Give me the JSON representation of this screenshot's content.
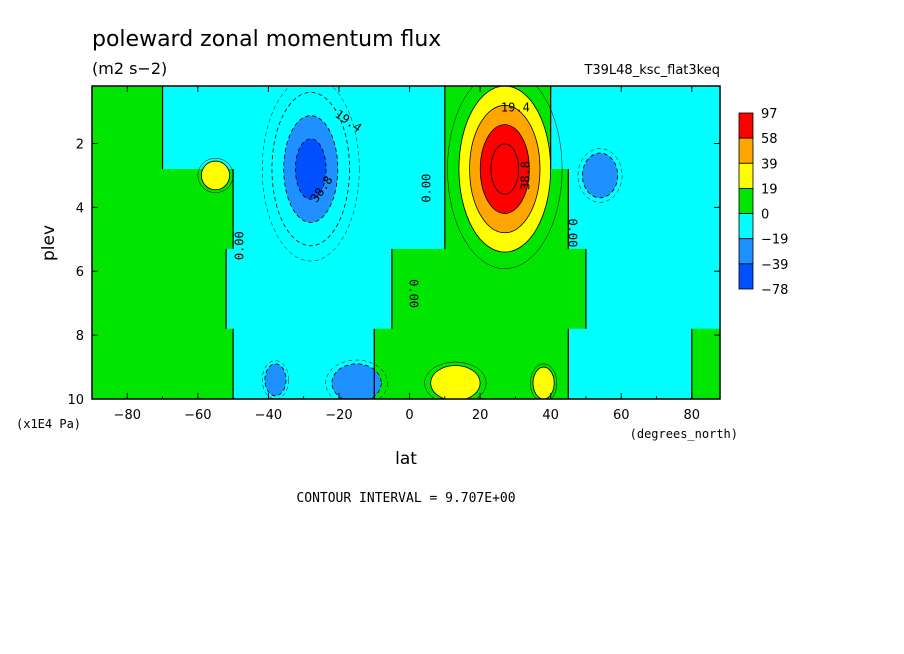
{
  "chart_data": {
    "type": "heatmap",
    "title": "poleward zonal momentum flux",
    "units": "(m2 s−2)",
    "run_label": "T39L48_ksc_flat3keq",
    "xlabel": "lat",
    "x_units": "(degrees_north)",
    "ylabel": "plev",
    "y_units": "(x1E4 Pa)",
    "xlim": [
      -90,
      88
    ],
    "ylim": [
      0.2,
      10
    ],
    "y_inverted": true,
    "x_ticks": [
      -80,
      -60,
      -40,
      -20,
      0,
      20,
      40,
      60,
      80
    ],
    "x_tick_labels": [
      "−80",
      "−60",
      "−40",
      "−20",
      "0",
      "20",
      "40",
      "60",
      "80"
    ],
    "y_ticks": [
      2,
      4,
      6,
      8,
      10
    ],
    "y_tick_labels": [
      "2",
      "4",
      "6",
      "8",
      "10"
    ],
    "colorbar": {
      "labels": [
        "97",
        "58",
        "39",
        "19",
        "0",
        "−19",
        "−39",
        "−78"
      ],
      "colors": [
        "#ff0000",
        "#ffa500",
        "#ffff00",
        "#00e600",
        "#00ffff",
        "#1e90ff",
        "#0050ff"
      ]
    },
    "contour_labels": [
      "19.4",
      "19.4",
      "38.8",
      "38.8",
      "0.00",
      "0.00",
      "0.00",
      "0.00"
    ],
    "footer": "CONTOUR INTERVAL = 9.707E+00",
    "bands": {
      "rows": [
        {
          "y": [
            0.2,
            2.8
          ],
          "segments": [
            [
              -90,
              -70,
              0
            ],
            [
              -70,
              -40,
              -1
            ],
            [
              -40,
              -5,
              -1
            ],
            [
              -5,
              0,
              -1
            ],
            [
              0,
              10,
              -1
            ],
            [
              10,
              40,
              0
            ],
            [
              40,
              88,
              -1
            ]
          ]
        },
        {
          "y": [
            2.8,
            5.3
          ],
          "segments": [
            [
              -90,
              -50,
              0
            ],
            [
              -50,
              -20,
              -1
            ],
            [
              -20,
              0,
              -1
            ],
            [
              0,
              10,
              -1
            ],
            [
              10,
              45,
              0
            ],
            [
              45,
              88,
              -1
            ]
          ]
        },
        {
          "y": [
            5.3,
            7.8
          ],
          "segments": [
            [
              -90,
              -52,
              0
            ],
            [
              -52,
              -5,
              -1
            ],
            [
              -5,
              5,
              0
            ],
            [
              5,
              50,
              0
            ],
            [
              50,
              88,
              -1
            ]
          ]
        },
        {
          "y": [
            7.8,
            10
          ],
          "segments": [
            [
              -90,
              -50,
              0
            ],
            [
              -50,
              -10,
              -1
            ],
            [
              -10,
              45,
              0
            ],
            [
              45,
              80,
              -1
            ],
            [
              80,
              88,
              0
            ]
          ]
        }
      ],
      "features": [
        {
          "lat": -28,
          "p": 2.8,
          "rlat": 11,
          "rp": 2.4,
          "levels": [
            -1,
            -2,
            -3
          ]
        },
        {
          "lat": 27,
          "p": 2.8,
          "rlat": 13,
          "rp": 2.6,
          "levels": [
            1,
            2,
            3,
            4
          ]
        },
        {
          "lat": -55,
          "p": 3.0,
          "rlat": 4,
          "rp": 0.45,
          "levels": [
            1
          ]
        },
        {
          "lat": 54,
          "p": 3.0,
          "rlat": 5,
          "rp": 0.7,
          "levels": [
            -2
          ]
        },
        {
          "lat": -38,
          "p": 9.4,
          "rlat": 3,
          "rp": 0.5,
          "levels": [
            -2
          ]
        },
        {
          "lat": -15,
          "p": 9.5,
          "rlat": 7,
          "rp": 0.6,
          "levels": [
            -2
          ]
        },
        {
          "lat": 13,
          "p": 9.5,
          "rlat": 7,
          "rp": 0.55,
          "levels": [
            1
          ]
        },
        {
          "lat": 38,
          "p": 9.5,
          "rlat": 3,
          "rp": 0.5,
          "levels": [
            1
          ]
        }
      ]
    }
  }
}
